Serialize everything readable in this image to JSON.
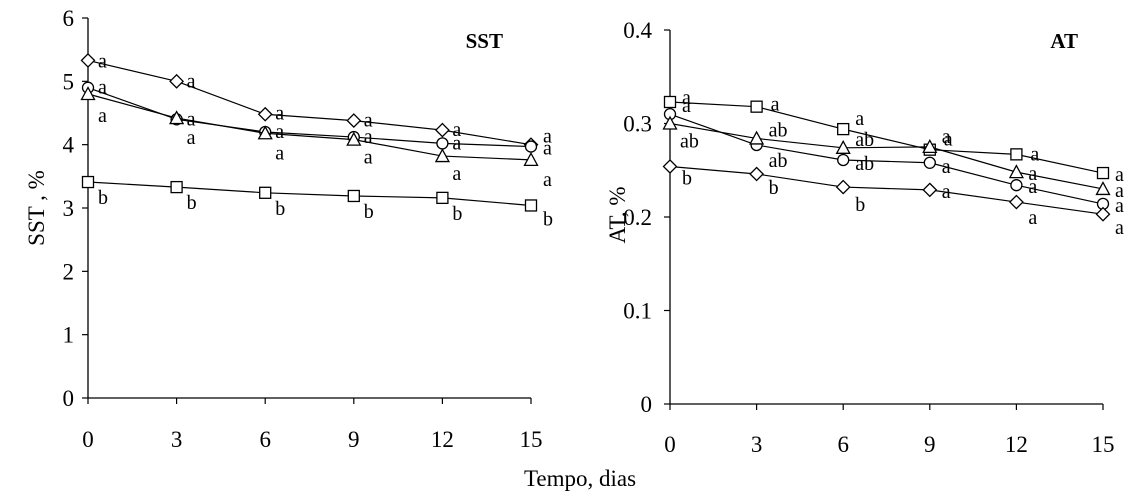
{
  "xlabel": "Tempo, dias",
  "chart_data": [
    {
      "type": "line",
      "title": "SST",
      "ylabel": "SST , %",
      "xlabel": "Tempo, dias",
      "x": [
        0,
        3,
        6,
        9,
        12,
        15
      ],
      "xticks": [
        "0",
        "3",
        "6",
        "9",
        "12",
        "15"
      ],
      "yticks": [
        "0",
        "1",
        "2",
        "3",
        "4",
        "5",
        "6"
      ],
      "ylim": [
        0,
        6
      ],
      "xlim": [
        0,
        15
      ],
      "grid": false,
      "series": [
        {
          "marker": "diamond",
          "values": [
            5.33,
            5.0,
            4.48,
            4.38,
            4.23,
            4.0
          ],
          "letters": [
            "a",
            "a",
            "a",
            "a",
            "a",
            "a"
          ]
        },
        {
          "marker": "circle",
          "values": [
            4.9,
            4.4,
            4.2,
            4.12,
            4.02,
            3.97
          ],
          "letters": [
            "a",
            "a",
            "a",
            "a",
            "a",
            "a"
          ]
        },
        {
          "marker": "triangle",
          "values": [
            4.8,
            4.42,
            4.18,
            4.08,
            3.82,
            3.76
          ],
          "letters": [
            "a",
            "a",
            "a",
            "a",
            "a",
            "a"
          ]
        },
        {
          "marker": "square",
          "values": [
            3.41,
            3.33,
            3.24,
            3.19,
            3.16,
            3.04
          ],
          "letters": [
            "b",
            "b",
            "b",
            "b",
            "b",
            "b"
          ]
        }
      ]
    },
    {
      "type": "line",
      "title": "AT",
      "ylabel": "AT, %",
      "xlabel": "Tempo, dias",
      "x": [
        0,
        3,
        6,
        9,
        12,
        15
      ],
      "xticks": [
        "0",
        "3",
        "6",
        "9",
        "12",
        "15"
      ],
      "yticks": [
        "0",
        "0.1",
        "0.2",
        "0.3",
        "0.4"
      ],
      "ylim": [
        0,
        0.4
      ],
      "xlim": [
        0,
        15
      ],
      "grid": false,
      "series": [
        {
          "marker": "square",
          "values": [
            0.323,
            0.318,
            0.294,
            0.272,
            0.267,
            0.247
          ],
          "letters": [
            "a",
            "a",
            "a",
            "a",
            "a",
            "a"
          ]
        },
        {
          "marker": "circle",
          "values": [
            0.31,
            0.277,
            0.261,
            0.258,
            0.234,
            0.214
          ],
          "letters": [
            "a",
            "ab",
            "ab",
            "a",
            "a",
            "a"
          ]
        },
        {
          "marker": "triangle",
          "values": [
            0.3,
            0.284,
            0.274,
            0.275,
            0.248,
            0.23
          ],
          "letters": [
            "ab",
            "ab",
            "ab",
            "a",
            "a",
            "a"
          ]
        },
        {
          "marker": "diamond",
          "values": [
            0.254,
            0.246,
            0.232,
            0.229,
            0.216,
            0.203
          ],
          "letters": [
            "b",
            "b",
            "b",
            "a",
            "a",
            "a"
          ]
        }
      ]
    }
  ]
}
